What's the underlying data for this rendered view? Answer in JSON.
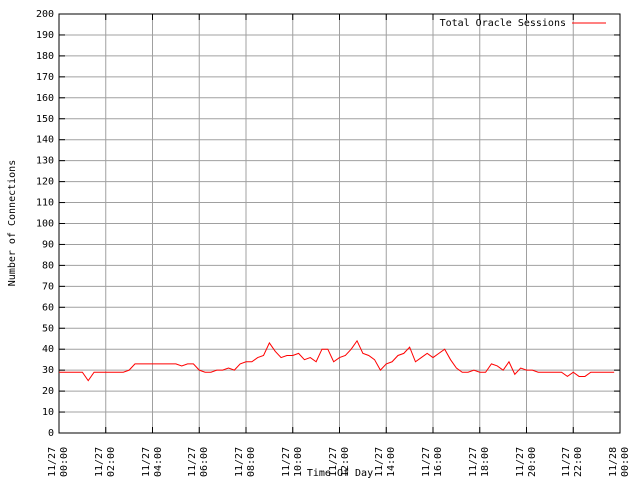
{
  "chart_data": {
    "type": "line",
    "xlabel": "Time Of Day",
    "ylabel": "Number of Connections",
    "x": [
      "11/27 00:00",
      "11/27 00:15",
      "11/27 00:30",
      "11/27 00:45",
      "11/27 01:00",
      "11/27 01:15",
      "11/27 01:30",
      "11/27 01:45",
      "11/27 02:00",
      "11/27 02:15",
      "11/27 02:30",
      "11/27 02:45",
      "11/27 03:00",
      "11/27 03:15",
      "11/27 03:30",
      "11/27 03:45",
      "11/27 04:00",
      "11/27 04:15",
      "11/27 04:30",
      "11/27 04:45",
      "11/27 05:00",
      "11/27 05:15",
      "11/27 05:30",
      "11/27 05:45",
      "11/27 06:00",
      "11/27 06:15",
      "11/27 06:30",
      "11/27 06:45",
      "11/27 07:00",
      "11/27 07:15",
      "11/27 07:30",
      "11/27 07:45",
      "11/27 08:00",
      "11/27 08:15",
      "11/27 08:30",
      "11/27 08:45",
      "11/27 09:00",
      "11/27 09:15",
      "11/27 09:30",
      "11/27 09:45",
      "11/27 10:00",
      "11/27 10:15",
      "11/27 10:30",
      "11/27 10:45",
      "11/27 11:00",
      "11/27 11:15",
      "11/27 11:30",
      "11/27 11:45",
      "11/27 12:00",
      "11/27 12:15",
      "11/27 12:30",
      "11/27 12:45",
      "11/27 13:00",
      "11/27 13:15",
      "11/27 13:30",
      "11/27 13:45",
      "11/27 14:00",
      "11/27 14:15",
      "11/27 14:30",
      "11/27 14:45",
      "11/27 15:00",
      "11/27 15:15",
      "11/27 15:30",
      "11/27 15:45",
      "11/27 16:00",
      "11/27 16:15",
      "11/27 16:30",
      "11/27 16:45",
      "11/27 17:00",
      "11/27 17:15",
      "11/27 17:30",
      "11/27 17:45",
      "11/27 18:00",
      "11/27 18:15",
      "11/27 18:30",
      "11/27 18:45",
      "11/27 19:00",
      "11/27 19:15",
      "11/27 19:30",
      "11/27 19:45",
      "11/27 20:00",
      "11/27 20:15",
      "11/27 20:30",
      "11/27 20:45",
      "11/27 21:00",
      "11/27 21:15",
      "11/27 21:30",
      "11/27 21:45",
      "11/27 22:00",
      "11/27 22:15",
      "11/27 22:30",
      "11/27 22:45",
      "11/27 23:00",
      "11/27 23:15",
      "11/27 23:30",
      "11/27 23:45"
    ],
    "series": [
      {
        "name": "Total Oracle Sessions",
        "color": "#ff0000",
        "values": [
          29,
          29,
          29,
          29,
          29,
          25,
          29,
          29,
          29,
          29,
          29,
          29,
          30,
          33,
          33,
          33,
          33,
          33,
          33,
          33,
          33,
          32,
          33,
          33,
          30,
          29,
          29,
          30,
          30,
          31,
          30,
          33,
          34,
          34,
          36,
          37,
          43,
          39,
          36,
          37,
          37,
          38,
          35,
          36,
          34,
          40,
          40,
          34,
          36,
          37,
          40,
          44,
          38,
          37,
          35,
          30,
          33,
          34,
          37,
          38,
          41,
          34,
          36,
          38,
          36,
          38,
          40,
          35,
          31,
          29,
          29,
          30,
          29,
          29,
          33,
          32,
          30,
          34,
          28,
          31,
          30,
          30,
          29,
          29,
          29,
          29,
          29,
          27,
          29,
          27,
          27,
          29,
          29,
          29,
          29,
          29
        ]
      }
    ],
    "xlim": [
      "11/27 00:00",
      "11/28 00:00"
    ],
    "xticks": [
      "11/27 00:00",
      "11/27 02:00",
      "11/27 04:00",
      "11/27 06:00",
      "11/27 08:00",
      "11/27 10:00",
      "11/27 12:00",
      "11/27 14:00",
      "11/27 16:00",
      "11/27 18:00",
      "11/27 20:00",
      "11/27 22:00",
      "11/28 00:00"
    ],
    "ylim": [
      0,
      200
    ],
    "yticks": [
      0,
      10,
      20,
      30,
      40,
      50,
      60,
      70,
      80,
      90,
      100,
      110,
      120,
      130,
      140,
      150,
      160,
      170,
      180,
      190,
      200
    ],
    "grid": true,
    "legend": "top-right"
  }
}
